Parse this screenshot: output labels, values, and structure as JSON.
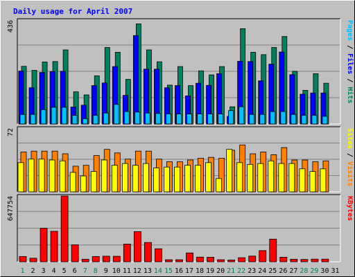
{
  "chart_data": {
    "type": "bar",
    "title": "Daily usage for April 2007",
    "days": [
      "1",
      "2",
      "3",
      "4",
      "5",
      "6",
      "7",
      "8",
      "9",
      "10",
      "11",
      "12",
      "13",
      "14",
      "15",
      "16",
      "17",
      "18",
      "19",
      "20",
      "21",
      "22",
      "23",
      "24",
      "25",
      "26",
      "27",
      "28",
      "29",
      "30",
      "31"
    ],
    "weekend_days": [
      "1",
      "7",
      "8",
      "14",
      "15",
      "21",
      "22",
      "28",
      "29"
    ],
    "usage_panel": {
      "max_label": "436",
      "ymax": 436,
      "right_labels": [
        "Pages",
        "Files",
        "Hits"
      ],
      "series": [
        {
          "name": "Hits",
          "color": "#00805c",
          "values": [
            242,
            225,
            260,
            262,
            311,
            135,
            122,
            202,
            321,
            301,
            187,
            420,
            311,
            261,
            163,
            241,
            161,
            223,
            206,
            241,
            72,
            400,
            301,
            291,
            321,
            367,
            221,
            141,
            211,
            171,
            0
          ]
        },
        {
          "name": "Files",
          "color": "#0000ff",
          "values": [
            222,
            152,
            216,
            220,
            221,
            71,
            79,
            161,
            172,
            241,
            120,
            371,
            230,
            230,
            152,
            161,
            118,
            171,
            162,
            211,
            32,
            263,
            262,
            181,
            251,
            302,
            207,
            125,
            130,
            130,
            0
          ]
        },
        {
          "name": "Pages",
          "color": "#00c0ff",
          "values": [
            40,
            40,
            60,
            70,
            70,
            36,
            22,
            36,
            46,
            82,
            52,
            50,
            46,
            44,
            42,
            42,
            42,
            42,
            42,
            42,
            56,
            72,
            40,
            40,
            52,
            52,
            40,
            36,
            36,
            32,
            0
          ]
        }
      ]
    },
    "visits_panel": {
      "max_label": "72",
      "ymax": 72,
      "right_labels": [
        "Sites",
        "Visits"
      ],
      "series": [
        {
          "name": "Visits",
          "color": "#ff8000",
          "values": [
            45,
            46,
            46,
            46,
            43,
            29,
            30,
            41,
            48,
            44,
            37,
            46,
            46,
            37,
            34,
            34,
            36,
            38,
            39,
            38,
            47,
            53,
            43,
            45,
            42,
            50,
            36,
            36,
            34,
            35,
            0
          ]
        },
        {
          "name": "Sites",
          "color": "#ffff00",
          "values": [
            33,
            37,
            37,
            36,
            35,
            22,
            18,
            23,
            36,
            30,
            32,
            30,
            32,
            27,
            28,
            28,
            30,
            30,
            33,
            15,
            48,
            33,
            31,
            32,
            35,
            32,
            32,
            26,
            23,
            26,
            0
          ]
        }
      ]
    },
    "kbytes_panel": {
      "max_label": "647754",
      "ymax": 647754,
      "right_labels": [
        "KBytes"
      ],
      "series": [
        {
          "name": "KBytes",
          "color": "#ff0000",
          "values": [
            52000,
            35000,
            330000,
            300000,
            652000,
            167000,
            25000,
            52000,
            55000,
            54000,
            174000,
            297000,
            190000,
            128000,
            20000,
            20000,
            87000,
            46000,
            45000,
            20000,
            17000,
            40000,
            56000,
            110000,
            223000,
            45000,
            25000,
            23000,
            26000,
            26000,
            0
          ]
        }
      ]
    },
    "colors": {
      "background": "#c0c0c0",
      "plot_background": "#c0c0c0",
      "grid": "#808080",
      "title": "#0000ff",
      "weekday_label": "#000000",
      "weekend_label": "#00805c"
    }
  }
}
